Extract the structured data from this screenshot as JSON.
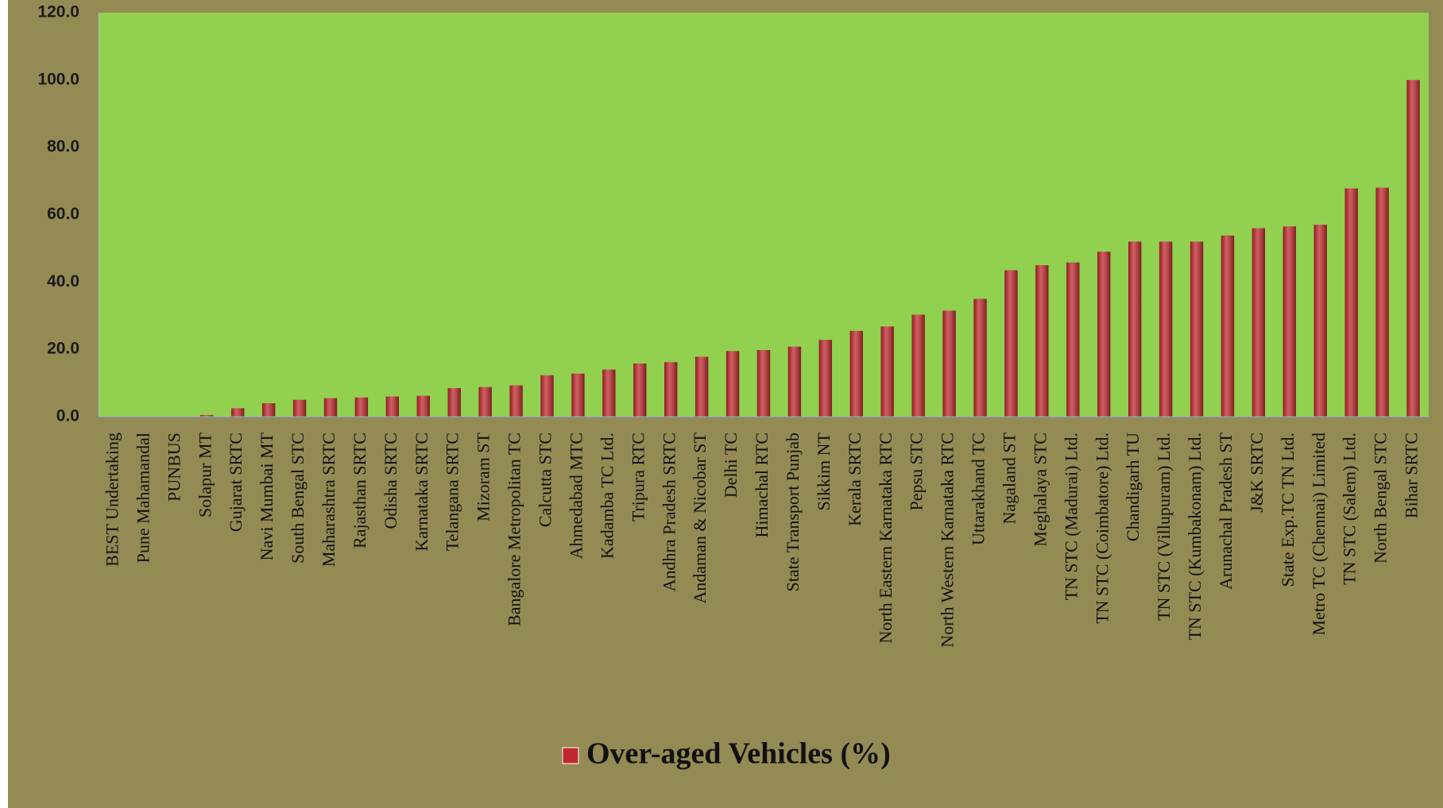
{
  "chart_data": {
    "type": "bar",
    "categories": [
      "BEST Undertaking",
      "Pune Mahamandal",
      "PUNBUS",
      "Solapur MT",
      "Gujarat SRTC",
      "Navi Mumbai MT",
      "South Bengal STC",
      "Maharashtra SRTC",
      "Rajasthan SRTC",
      "Odisha SRTC",
      "Karnataka SRTC",
      "Telangana SRTC",
      "Mizoram ST",
      "Bangalore Metropolitan TC",
      "Calcutta STC",
      "Ahmedabad MTC",
      "Kadamba TC Ltd.",
      "Tripura RTC",
      "Andhra Pradesh SRTC",
      "Andaman & Nicobar ST",
      "Delhi TC",
      "Himachal RTC",
      "State Transport Punjab",
      "Sikkim NT",
      "Kerala SRTC",
      "North Eastern Karnataka RTC",
      "Pepsu STC",
      "North Western Karnataka RTC",
      "Uttarakhand  TC",
      "Nagaland ST",
      "Meghalaya STC",
      "TN STC (Madurai) Ltd.",
      "TN STC (Coimbatore) Ltd.",
      "Chandigarh TU",
      "TN STC (Villupuram) Ltd.",
      "TN STC (Kumbakonam) Ltd.",
      "Arunachal Pradesh ST",
      "J&K SRTC",
      "State Exp.TC TN Ltd.",
      "Metro TC (Chennai) Limited",
      "TN STC (Salem) Ltd.",
      "North Bengal STC",
      "Bihar SRTC"
    ],
    "series": [
      {
        "name": "Over-aged Vehicles (%)",
        "color": "#c0282d",
        "values": [
          0,
          0,
          0,
          0.5,
          2.5,
          4,
          5,
          5.5,
          5.7,
          6,
          6.2,
          8.5,
          8.8,
          9.3,
          12.3,
          12.8,
          14,
          15.8,
          16.2,
          17.8,
          19.5,
          19.8,
          20.8,
          22.8,
          25.5,
          26.8,
          30.3,
          31.5,
          35,
          43.5,
          45,
          45.8,
          49,
          52,
          52,
          52,
          53.8,
          56,
          56.5,
          57,
          67.8,
          68,
          100
        ]
      }
    ],
    "ylim": [
      0,
      120
    ],
    "yticks": [
      {
        "value": 0,
        "label": "0.0"
      },
      {
        "value": 20,
        "label": "20.0"
      },
      {
        "value": 40,
        "label": "40.0"
      },
      {
        "value": 60,
        "label": "60.0"
      },
      {
        "value": 80,
        "label": "80.0"
      },
      {
        "value": 100,
        "label": "100.0"
      },
      {
        "value": 120,
        "label": "120.0"
      }
    ],
    "legend": "bottom"
  }
}
